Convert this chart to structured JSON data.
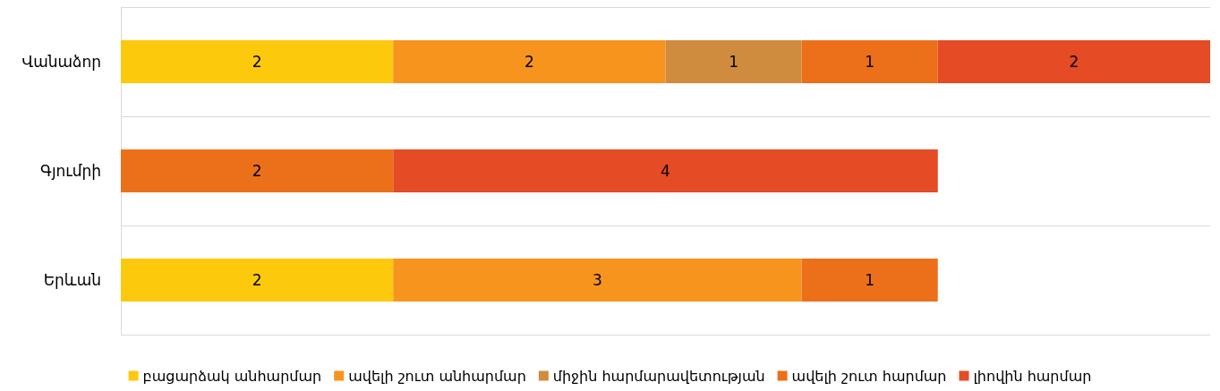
{
  "chart_data": {
    "type": "bar",
    "orientation": "horizontal",
    "stacked": true,
    "data_labels": true,
    "grid": "y",
    "legend": "bottom",
    "categories": [
      "Վանաձոր",
      "Գյումրի",
      "Երևան"
    ],
    "series": [
      {
        "name": "բացարձակ անհարմար",
        "color": "#fdc90c",
        "values": [
          2,
          null,
          2
        ]
      },
      {
        "name": "ավելի շուտ անհարմար",
        "color": "#f7941d",
        "values": [
          2,
          null,
          3
        ]
      },
      {
        "name": "միջին հարմարավետության",
        "color": "#d08c3e",
        "values": [
          1,
          null,
          null
        ]
      },
      {
        "name": "ավելի շուտ հարմար",
        "color": "#ec7019",
        "values": [
          1,
          2,
          1
        ]
      },
      {
        "name": "լիովին հարմար",
        "color": "#e54b24",
        "values": [
          2,
          4,
          null
        ]
      }
    ]
  }
}
